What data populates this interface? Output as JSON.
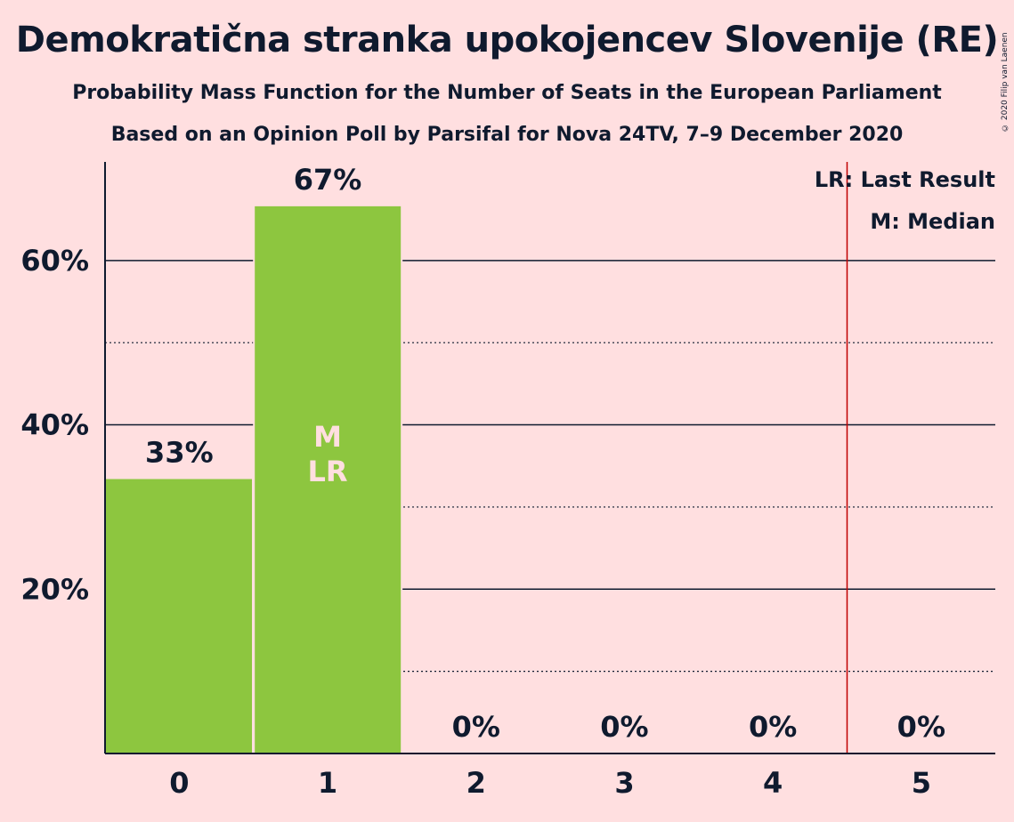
{
  "chart_data": {
    "type": "bar",
    "title": "Demokratična stranka upokojencev Slovenije (RE)",
    "subtitle": "Probability Mass Function for the Number of Seats in the European Parliament",
    "subtitle_2": "Based on an Opinion Poll by Parsifal for Nova 24TV, 7–9 December 2020",
    "copyright": "© 2020 Filip van Laenen",
    "categories": [
      "0",
      "1",
      "2",
      "3",
      "4",
      "5"
    ],
    "values": [
      33.4,
      66.6,
      0,
      0,
      0,
      0
    ],
    "value_labels": [
      "33%",
      "67%",
      "0%",
      "0%",
      "0%",
      "0%"
    ],
    "ylim": [
      0,
      72
    ],
    "yticks": [
      20,
      40,
      60
    ],
    "ytick_labels": [
      "20%",
      "40%",
      "60%"
    ],
    "minor_gridlines": [
      10,
      30,
      50
    ],
    "grid": true,
    "bar_color": "#8dc63f",
    "last_result": {
      "category": "1",
      "position_between": [
        4,
        5
      ],
      "label_short": "LR",
      "legend": "LR: Last Result",
      "color": "#c00000"
    },
    "median": {
      "category": "1",
      "label_short": "M",
      "legend": "M: Median"
    },
    "legend_placement": "top-right"
  }
}
